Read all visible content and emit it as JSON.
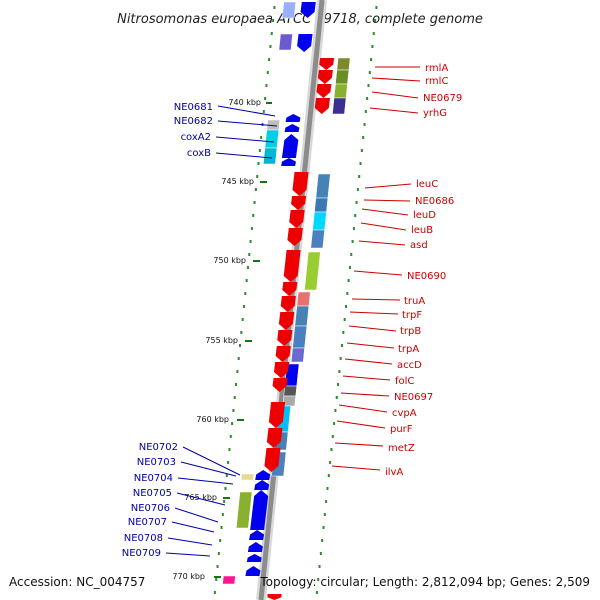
{
  "title": "Nitrosomonas europaea ATCC 19718, complete genome",
  "footer": {
    "accession": "Accession: NC_004757",
    "topology": "Topology: circular; Length: 2,812,094 bp; Genes: 2,509"
  },
  "colors": {
    "right_label": "#cc0000",
    "left_label": "#0000aa",
    "kbp_tick": "#117711"
  },
  "kbp_ticks": [
    {
      "label": "740 kbp",
      "kbp": 740
    },
    {
      "label": "745 kbp",
      "kbp": 745
    },
    {
      "label": "750 kbp",
      "kbp": 750
    },
    {
      "label": "755 kbp",
      "kbp": 755
    },
    {
      "label": "760 kbp",
      "kbp": 760
    },
    {
      "label": "765 kbp",
      "kbp": 765
    },
    {
      "label": "770 kbp",
      "kbp": 770
    }
  ],
  "right_genes": [
    "rmlA",
    "rmlC",
    "NE0679",
    "yrhG",
    "leuC",
    "NE0686",
    "leuD",
    "leuB",
    "asd",
    "NE0690",
    "truA",
    "trpF",
    "trpB",
    "trpA",
    "accD",
    "folC",
    "NE0697",
    "cvpA",
    "purF",
    "metZ",
    "ilvA"
  ],
  "left_genes": [
    "NE0681",
    "NE0682",
    "coxA2",
    "coxB",
    "NE0702",
    "NE0703",
    "NE0704",
    "NE0705",
    "NE0706",
    "NE0707",
    "NE0708",
    "NE0709"
  ]
}
